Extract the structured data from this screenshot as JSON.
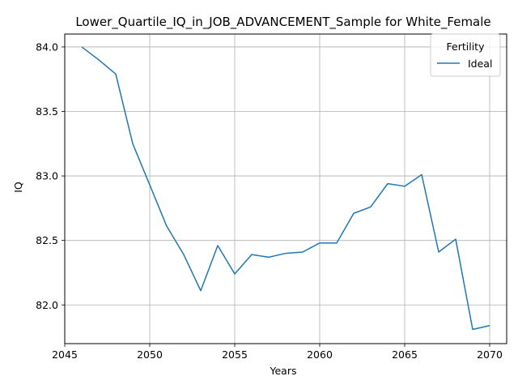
{
  "chart_data": {
    "type": "line",
    "title": "Lower_Quartile_IQ_in_JOB_ADVANCEMENT_Sample for White_Female",
    "xlabel": "Years",
    "ylabel": "IQ",
    "xlim": [
      2045,
      2071
    ],
    "ylim": [
      81.7,
      84.1
    ],
    "xticks": [
      2045,
      2050,
      2055,
      2060,
      2065,
      2070
    ],
    "yticks": [
      82.0,
      82.5,
      83.0,
      83.5,
      84.0
    ],
    "xtick_labels": [
      "2045",
      "2050",
      "2055",
      "2060",
      "2065",
      "2070"
    ],
    "ytick_labels": [
      "82.0",
      "82.5",
      "83.0",
      "83.5",
      "84.0"
    ],
    "grid": true,
    "legend": {
      "title": "Fertility",
      "placement": "top-right"
    },
    "series": [
      {
        "name": "Ideal",
        "color": "#1f77b4",
        "x": [
          2046,
          2047,
          2048,
          2049,
          2050,
          2051,
          2052,
          2053,
          2054,
          2055,
          2056,
          2057,
          2058,
          2059,
          2060,
          2061,
          2062,
          2063,
          2064,
          2065,
          2066,
          2067,
          2068,
          2069,
          2070
        ],
        "y": [
          84.0,
          83.9,
          83.79,
          83.25,
          82.93,
          82.61,
          82.39,
          82.11,
          82.46,
          82.24,
          82.39,
          82.37,
          82.4,
          82.41,
          82.48,
          82.48,
          82.71,
          82.76,
          82.94,
          82.92,
          83.01,
          82.41,
          82.51,
          81.81,
          81.84
        ]
      }
    ]
  }
}
